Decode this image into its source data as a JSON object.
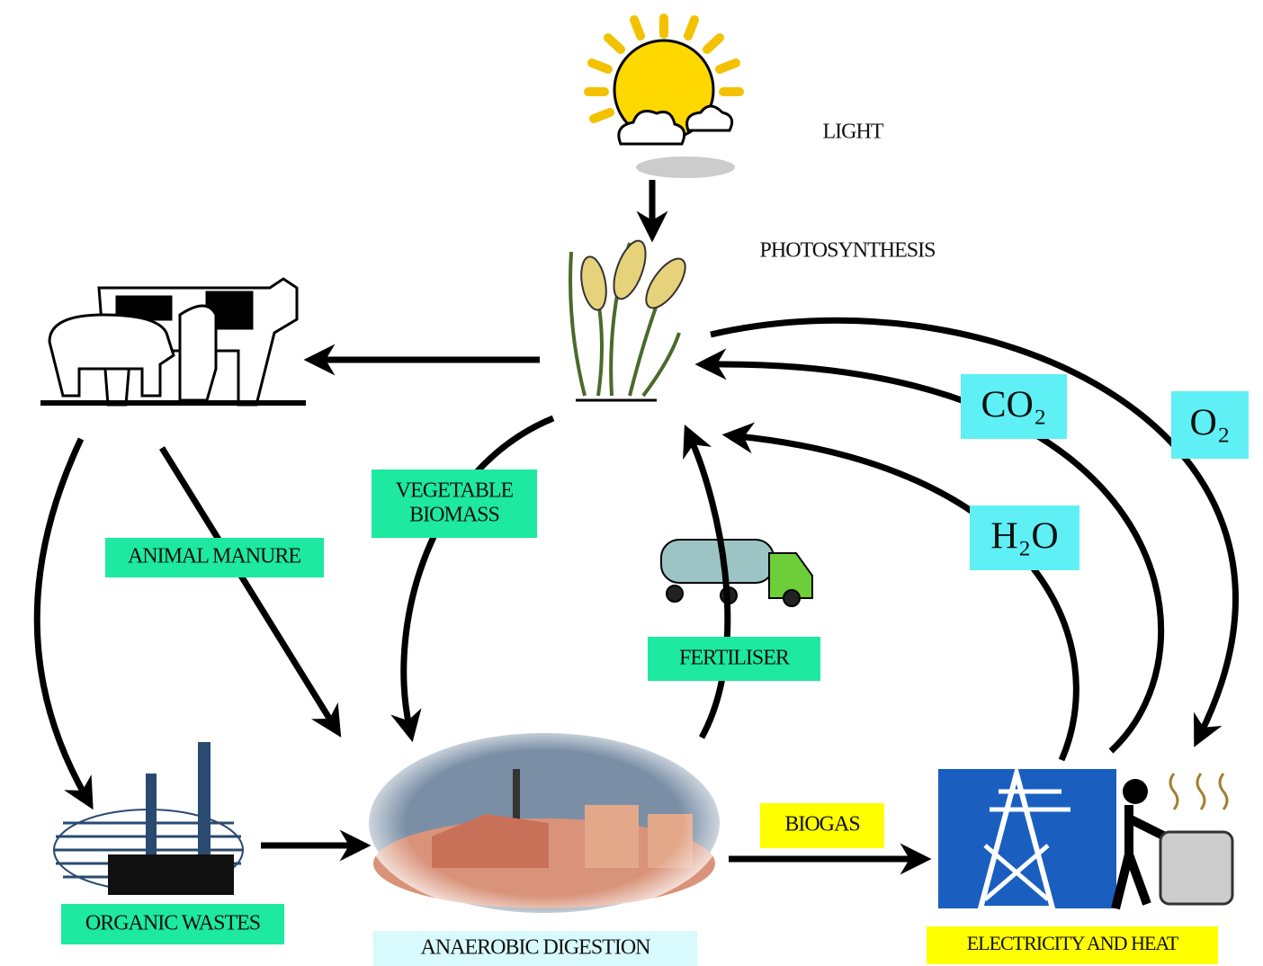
{
  "labels": {
    "light": "LIGHT",
    "photosynthesis": "PHOTOSYNTHESIS"
  },
  "flows": {
    "vegetable_biomass": [
      "VEGETABLE",
      "BIOMASS"
    ],
    "animal_manure": "ANIMAL MANURE",
    "fertiliser": "FERTILISER",
    "biogas": "BIOGAS"
  },
  "gases": {
    "co2": "CO₂",
    "o2": "O₂",
    "h2o": "H₂O"
  },
  "nodes": {
    "organic_wastes": "ORGANIC WASTES",
    "anaerobic_digestion": "ANAEROBIC DIGESTION",
    "electricity_and_heat": "ELECTRICITY AND HEAT"
  }
}
